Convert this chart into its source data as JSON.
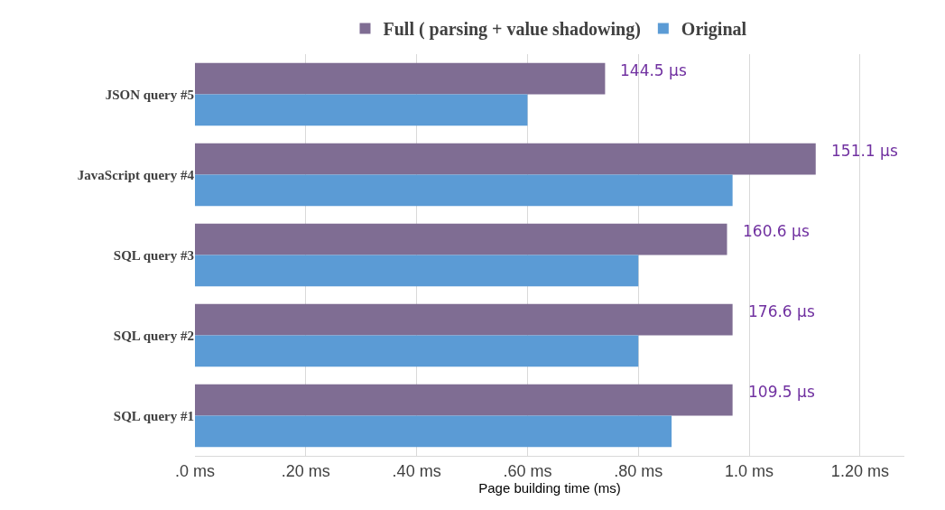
{
  "chart_data": {
    "type": "bar",
    "orientation": "horizontal",
    "xlabel": "Page building time (ms)",
    "categories": [
      "JSON query #5",
      "JavaScript query #4",
      "SQL query #3",
      "SQL query #2",
      "SQL query #1"
    ],
    "series": [
      {
        "name": "Full ( parsing + value shadowing)",
        "color": "#7f6d93",
        "values": [
          0.74,
          1.12,
          0.96,
          0.97,
          0.97
        ]
      },
      {
        "name": "Original",
        "color": "#5b9bd5",
        "values": [
          0.6,
          0.97,
          0.8,
          0.8,
          0.86
        ]
      }
    ],
    "xlim": [
      0,
      1.28
    ],
    "xticks": [
      {
        "value": 0,
        "label": ".0 ms"
      },
      {
        "value": 0.2,
        "label": ".20 ms"
      },
      {
        "value": 0.4,
        "label": ".40 ms"
      },
      {
        "value": 0.6,
        "label": ".60 ms"
      },
      {
        "value": 0.8,
        "label": ".80 ms"
      },
      {
        "value": 1.0,
        "label": "1.0 ms"
      },
      {
        "value": 1.2,
        "label": "1.20 ms"
      }
    ],
    "annotations": [
      {
        "text": "144.5 µs",
        "x": 0.74,
        "y": "JSON query #5"
      },
      {
        "text": "151.1 µs",
        "x": 1.12,
        "y": "JavaScript query #4"
      },
      {
        "text": "160.6 µs",
        "x": 0.96,
        "y": "SQL query #3"
      },
      {
        "text": "176.6 µs",
        "x": 0.97,
        "y": "SQL query #2"
      },
      {
        "text": "109.5 µs",
        "x": 0.97,
        "y": "SQL query #1"
      }
    ],
    "grid": "x",
    "legend": "top"
  }
}
